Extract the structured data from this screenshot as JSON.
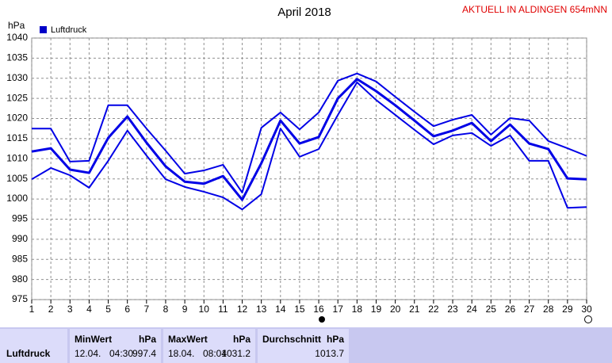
{
  "chart_data": {
    "type": "line",
    "title": "April 2018",
    "station": "AKTUELL IN ALDINGEN 654mNN",
    "y_label": "hPa",
    "legend": "Luftdruck",
    "grid": true,
    "x": [
      1,
      2,
      3,
      4,
      5,
      6,
      7,
      8,
      9,
      10,
      11,
      12,
      13,
      14,
      15,
      16,
      17,
      18,
      19,
      20,
      21,
      22,
      23,
      24,
      25,
      26,
      27,
      28,
      29,
      30
    ],
    "xlim": [
      1,
      30
    ],
    "xticks": [
      1,
      2,
      3,
      4,
      5,
      6,
      7,
      8,
      9,
      10,
      11,
      12,
      13,
      14,
      15,
      16,
      17,
      18,
      19,
      20,
      21,
      22,
      23,
      24,
      25,
      26,
      27,
      28,
      29,
      30
    ],
    "ylim": [
      975,
      1040
    ],
    "yticks": [
      975,
      980,
      985,
      990,
      995,
      1000,
      1005,
      1010,
      1015,
      1020,
      1025,
      1030,
      1035,
      1040
    ],
    "series": [
      {
        "name": "Luftdruck",
        "color": "#0000e6",
        "values": [
          1011.8,
          1012.6,
          1007.3,
          1006.5,
          1015.2,
          1020.5,
          1014.0,
          1008.1,
          1004.3,
          1003.8,
          1005.7,
          999.8,
          1008.9,
          1019.5,
          1013.8,
          1015.4,
          1025.0,
          1029.8,
          1026.8,
          1023.3,
          1019.5,
          1015.6,
          1017.0,
          1018.9,
          1014.4,
          1018.5,
          1013.8,
          1012.4,
          1005.1,
          1004.9
        ]
      },
      {
        "color": "#0000e6",
        "values": [
          1017.5,
          1017.5,
          1009.3,
          1009.5,
          1023.3,
          1023.3,
          1017.5,
          1012.0,
          1006.3,
          1007.1,
          1008.5,
          1001.6,
          1017.7,
          1021.5,
          1017.3,
          1021.5,
          1029.4,
          1031.2,
          1029.2,
          1025.4,
          1021.7,
          1018.1,
          1019.7,
          1020.9,
          1016.0,
          1020.1,
          1019.5,
          1014.4,
          1012.6,
          1010.7
        ]
      },
      {
        "color": "#0000e6",
        "values": [
          1004.9,
          1007.7,
          1005.9,
          1002.8,
          1009.5,
          1017.0,
          1010.8,
          1004.9,
          1003.0,
          1001.8,
          1000.4,
          997.4,
          1001.2,
          1017.5,
          1010.5,
          1012.4,
          1020.9,
          1029.0,
          1024.6,
          1020.9,
          1017.2,
          1013.6,
          1015.8,
          1016.4,
          1013.2,
          1015.8,
          1009.5,
          1009.5,
          997.8,
          998.0
        ]
      }
    ]
  },
  "summary": {
    "label": "Luftdruck",
    "min": {
      "title": "MinWert",
      "unit": "hPa",
      "date": "12.04.",
      "time": "04:30",
      "value": "997.4"
    },
    "max": {
      "title": "MaxWert",
      "unit": "hPa",
      "date": "18.04.",
      "time": "08:04",
      "value": "1031.2"
    },
    "avg": {
      "title": "Durchschnitt",
      "unit": "hPa",
      "value": "1013.7"
    }
  }
}
